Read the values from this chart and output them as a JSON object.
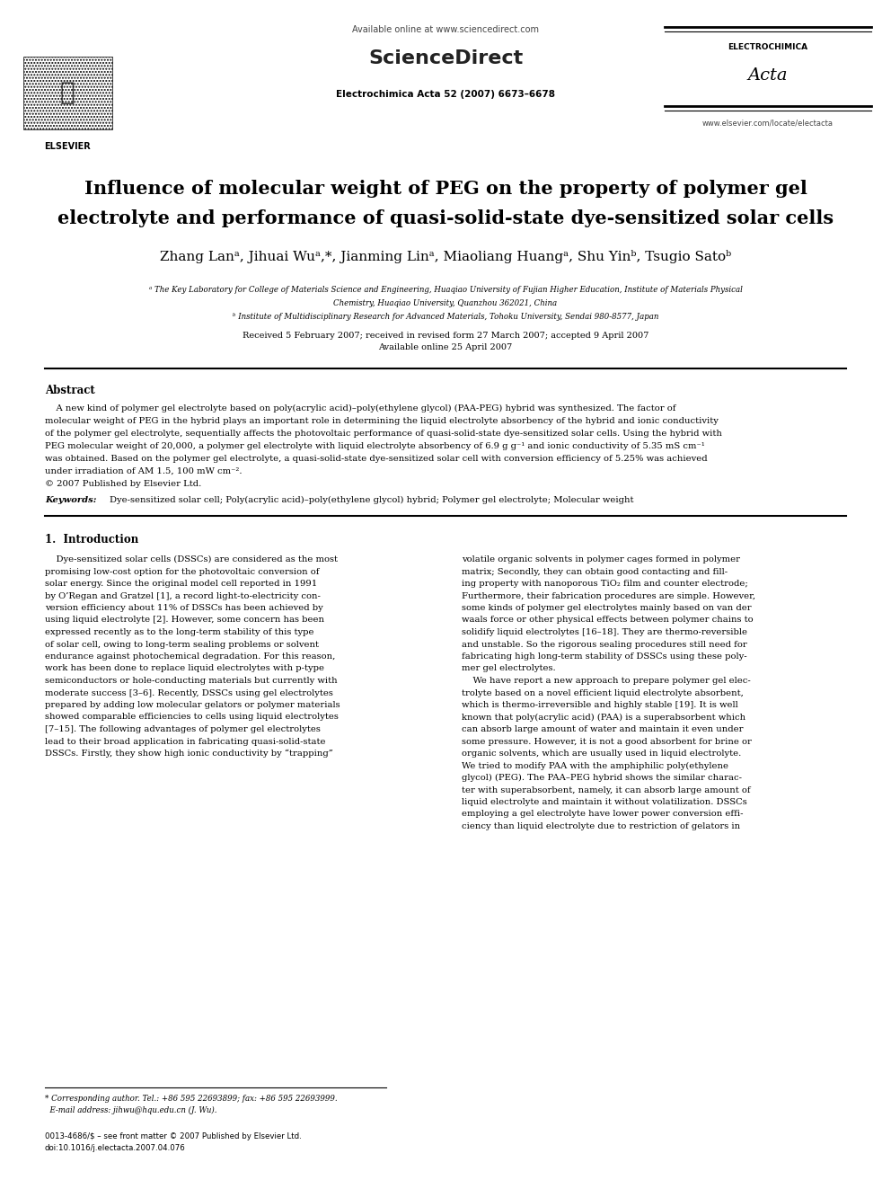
{
  "title_line1": "Influence of molecular weight of PEG on the property of polymer gel",
  "title_line2": "electrolyte and performance of quasi-solid-state dye-sensitized solar cells",
  "authors": "Zhang Lanᵃ, Jihuai Wuᵃ,*, Jianming Linᵃ, Miaoliang Huangᵃ, Shu Yinᵇ, Tsugio Satoᵇ",
  "affil_a": "ᵃ The Key Laboratory for College of Materials Science and Engineering, Huaqiao University of Fujian Higher Education, Institute of Materials Physical",
  "affil_a2": "Chemistry, Huaqiao University, Quanzhou 362021, China",
  "affil_b": "ᵇ Institute of Multidisciplinary Research for Advanced Materials, Tohoku University, Sendai 980-8577, Japan",
  "received": "Received 5 February 2007; received in revised form 27 March 2007; accepted 9 April 2007",
  "available": "Available online 25 April 2007",
  "journal": "Electrochimica Acta 52 (2007) 6673–6678",
  "available_online": "Available online at www.sciencedirect.com",
  "website": "www.elsevier.com/locate/electacta",
  "abstract_title": "Abstract",
  "keywords_label": "Keywords:",
  "keywords_text": "Dye-sensitized solar cell; Poly(acrylic acid)–poly(ethylene glycol) hybrid; Polymer gel electrolyte; Molecular weight",
  "section1_title": "1.  Introduction",
  "footer_left": "0013-4686/$ – see front matter © 2007 Published by Elsevier Ltd.",
  "footer_doi": "doi:10.1016/j.electacta.2007.04.076",
  "bg_color": "#ffffff"
}
